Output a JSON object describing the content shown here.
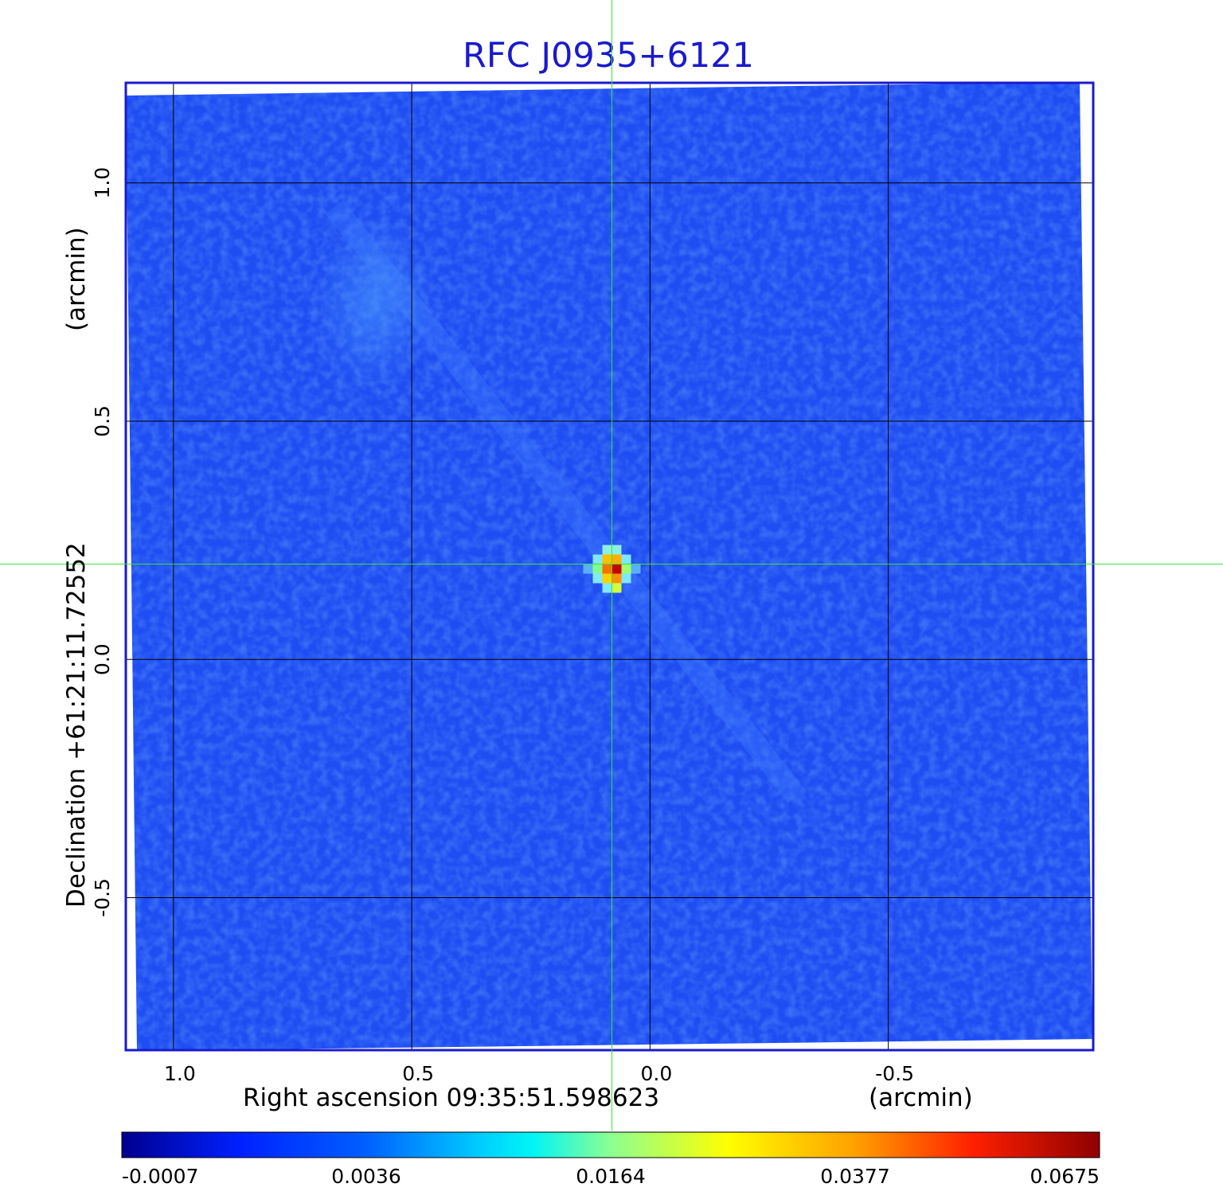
{
  "chart_data": {
    "type": "heatmap",
    "title": "RFC J0935+6121",
    "xlabel": "Right ascension  09:35:51.598623",
    "xunit": "(arcmin)",
    "ylabel": "Declination  +61:21:11.72552",
    "yunit": "(arcmin)",
    "xlim": [
      1.1,
      -0.93
    ],
    "ylim": [
      -0.82,
      1.21
    ],
    "x_ticks": [
      {
        "value": 1.0,
        "label": "1.0"
      },
      {
        "value": 0.5,
        "label": "0.5"
      },
      {
        "value": 0.0,
        "label": "0.0"
      },
      {
        "value": -0.5,
        "label": "-0.5"
      }
    ],
    "y_ticks": [
      {
        "value": 1.0,
        "label": "1.0"
      },
      {
        "value": 0.5,
        "label": "0.5"
      },
      {
        "value": 0.0,
        "label": "0.0"
      },
      {
        "value": -0.5,
        "label": "-0.5"
      }
    ],
    "grid": true,
    "crosshair": {
      "x": 0.08,
      "y": 0.2
    },
    "source_peak": {
      "x": 0.08,
      "y": 0.2,
      "value": 0.0675
    },
    "colorbar": {
      "colormap": "jet",
      "tick_labels": [
        "-0.0007",
        "0.0036",
        "0.0164",
        "0.0377",
        "0.0675"
      ],
      "min": -0.0007,
      "max": 0.0675
    },
    "colors": {
      "title": "#1a1acc",
      "frame": "#1a1acc",
      "background": "#1e4df2",
      "crosshair": "#33e633",
      "grid": "#000000"
    }
  }
}
